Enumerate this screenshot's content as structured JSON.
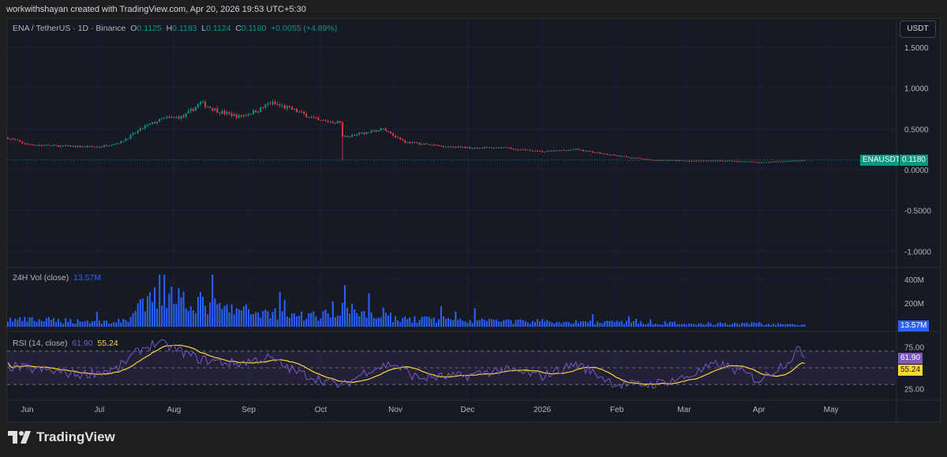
{
  "header": {
    "credit": "workwithshayan created with TradingView.com, Apr 20, 2026 19:53 UTC+5:30"
  },
  "legend": {
    "symbol": "ENA / TetherUS · 1D · Binance",
    "o_label": "O",
    "o": "0.1125",
    "h_label": "H",
    "h": "0.1193",
    "l_label": "L",
    "l": "0.1124",
    "c_label": "C",
    "c": "0.1180",
    "change": "+0.0055 (+4.89%)"
  },
  "currency_button": "USDT",
  "price_tag": {
    "symbol": "ENAUSDT",
    "value": "0.1180"
  },
  "volume": {
    "title": "24H Vol (close)",
    "value": "13.57M",
    "tag": "13.57M"
  },
  "rsi": {
    "title": "RSI (14, close)",
    "value": "61.90",
    "ma": "55.24"
  },
  "footer": {
    "brand": "TradingView"
  },
  "colors": {
    "up": "#089981",
    "down": "#f23645",
    "volume": "#2962ff",
    "rsi": "#7e57c2",
    "rsi_ma": "#fdd835"
  },
  "chart_data": {
    "type": "candlestick",
    "price_axis": {
      "ticks": [
        "1.5000",
        "1.0000",
        "0.5000",
        "0.0000",
        "-0.5000",
        "-1.0000"
      ],
      "values": [
        1.5,
        1.0,
        0.5,
        0,
        -0.5,
        -1.0
      ],
      "ylim": [
        -1.2,
        1.75
      ]
    },
    "volume_axis": {
      "ticks": [
        "400M",
        "200M"
      ],
      "values": [
        400,
        200
      ]
    },
    "rsi_axis": {
      "ticks": [
        "75.00",
        "25.00"
      ],
      "values": [
        75,
        25
      ],
      "band": [
        70,
        30
      ],
      "mid": 50
    },
    "time_axis": {
      "labels": [
        "Jun",
        "Jul",
        "Aug",
        "Sep",
        "Oct",
        "Nov",
        "Dec",
        "2026",
        "Feb",
        "Mar",
        "Apr",
        "May"
      ],
      "days": [
        8,
        38,
        69,
        100,
        130,
        161,
        191,
        222,
        253,
        281,
        312,
        342
      ]
    },
    "close_anchors_day_price": [
      [
        0,
        0.39
      ],
      [
        8,
        0.31
      ],
      [
        22,
        0.29
      ],
      [
        38,
        0.28
      ],
      [
        47,
        0.34
      ],
      [
        57,
        0.53
      ],
      [
        65,
        0.63
      ],
      [
        73,
        0.65
      ],
      [
        80,
        0.82
      ],
      [
        88,
        0.71
      ],
      [
        96,
        0.65
      ],
      [
        104,
        0.73
      ],
      [
        109,
        0.82
      ],
      [
        119,
        0.73
      ],
      [
        129,
        0.6
      ],
      [
        138,
        0.58
      ],
      [
        139,
        0.4
      ],
      [
        149,
        0.45
      ],
      [
        156,
        0.5
      ],
      [
        165,
        0.34
      ],
      [
        180,
        0.29
      ],
      [
        191,
        0.27
      ],
      [
        205,
        0.27
      ],
      [
        222,
        0.22
      ],
      [
        236,
        0.25
      ],
      [
        253,
        0.17
      ],
      [
        267,
        0.12
      ],
      [
        281,
        0.11
      ],
      [
        300,
        0.11
      ],
      [
        312,
        0.09
      ],
      [
        321,
        0.1
      ],
      [
        331,
        0.118
      ]
    ],
    "volume_anchors_day_M": [
      [
        0,
        60
      ],
      [
        30,
        50
      ],
      [
        45,
        40
      ],
      [
        50,
        70
      ],
      [
        55,
        160
      ],
      [
        62,
        250
      ],
      [
        70,
        260
      ],
      [
        80,
        200
      ],
      [
        90,
        150
      ],
      [
        100,
        130
      ],
      [
        110,
        120
      ],
      [
        130,
        80
      ],
      [
        138,
        180
      ],
      [
        150,
        90
      ],
      [
        165,
        70
      ],
      [
        190,
        50
      ],
      [
        220,
        45
      ],
      [
        250,
        40
      ],
      [
        280,
        30
      ],
      [
        310,
        25
      ],
      [
        331,
        14
      ]
    ],
    "rsi_anchors_day": [
      [
        0,
        52
      ],
      [
        15,
        47
      ],
      [
        30,
        42
      ],
      [
        45,
        48
      ],
      [
        55,
        72
      ],
      [
        62,
        80
      ],
      [
        70,
        72
      ],
      [
        80,
        60
      ],
      [
        95,
        55
      ],
      [
        108,
        62
      ],
      [
        120,
        45
      ],
      [
        139,
        28
      ],
      [
        150,
        48
      ],
      [
        160,
        55
      ],
      [
        170,
        38
      ],
      [
        190,
        40
      ],
      [
        205,
        48
      ],
      [
        222,
        40
      ],
      [
        236,
        55
      ],
      [
        253,
        30
      ],
      [
        267,
        30
      ],
      [
        281,
        38
      ],
      [
        295,
        55
      ],
      [
        305,
        45
      ],
      [
        312,
        35
      ],
      [
        325,
        60
      ],
      [
        328,
        72
      ],
      [
        331,
        62
      ]
    ]
  }
}
